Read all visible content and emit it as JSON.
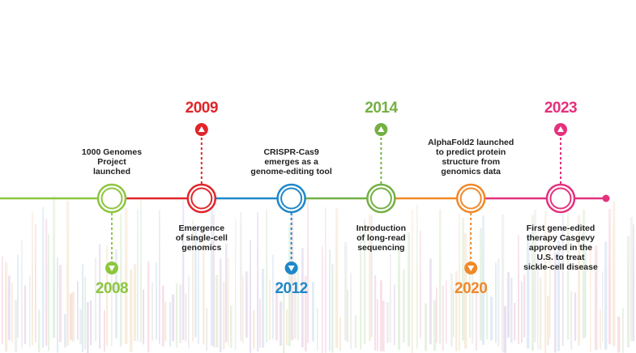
{
  "timeline": {
    "events": [
      {
        "year": "2008",
        "color": "#8dc63f",
        "year_side": "below",
        "description": [
          "1000 Genomes",
          "Project",
          "launched"
        ]
      },
      {
        "year": "2009",
        "color": "#e0262b",
        "year_side": "above",
        "description": [
          "Emergence",
          "of single-cell",
          "genomics"
        ]
      },
      {
        "year": "2012",
        "color": "#1f87c9",
        "year_side": "below",
        "description": [
          "CRISPR-Cas9",
          "emerges as a",
          "genome-editing tool"
        ]
      },
      {
        "year": "2014",
        "color": "#74b043",
        "year_side": "above",
        "description": [
          "Introduction",
          "of long-read",
          "sequencing"
        ]
      },
      {
        "year": "2020",
        "color": "#f0892a",
        "year_side": "below",
        "description": [
          "AlphaFold2 launched",
          "to predict protein",
          "structure from",
          "genomics data"
        ]
      },
      {
        "year": "2023",
        "color": "#e4317d",
        "year_side": "above",
        "description": [
          "First gene-edited",
          "therapy Casgevy",
          "approved in the",
          "U.S. to treat",
          "sickle-cell disease"
        ]
      }
    ]
  }
}
